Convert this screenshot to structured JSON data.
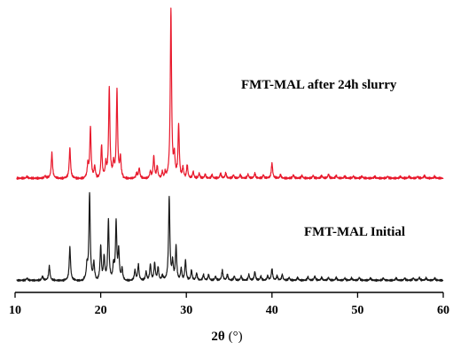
{
  "chart_data": {
    "type": "line",
    "xlabel_main": "2θ",
    "xlabel_unit": "(°)",
    "xlim": [
      10,
      60
    ],
    "xticks": [
      10,
      20,
      30,
      40,
      50,
      60
    ],
    "grid": false,
    "legend": "none",
    "peak_width_deg": 0.09,
    "series": [
      {
        "name": "FMT-MAL after 24h slurry",
        "color": "#e8192c",
        "baseline": 0.5,
        "peaks": [
          [
            11.4,
            0.5
          ],
          [
            13.5,
            0.8
          ],
          [
            14.3,
            7.5
          ],
          [
            16.4,
            9.0
          ],
          [
            18.5,
            4.0
          ],
          [
            18.8,
            15.0
          ],
          [
            19.3,
            3.5
          ],
          [
            20.1,
            10.0
          ],
          [
            20.6,
            4.0
          ],
          [
            21.0,
            27.0
          ],
          [
            21.5,
            4.0
          ],
          [
            21.9,
            26.0
          ],
          [
            22.3,
            6.0
          ],
          [
            24.2,
            1.5
          ],
          [
            24.5,
            3.0
          ],
          [
            25.8,
            2.0
          ],
          [
            26.2,
            6.5
          ],
          [
            26.6,
            3.5
          ],
          [
            27.2,
            2.0
          ],
          [
            27.5,
            1.5
          ],
          [
            28.2,
            50.0
          ],
          [
            28.6,
            6.0
          ],
          [
            29.1,
            16.0
          ],
          [
            29.6,
            3.0
          ],
          [
            30.1,
            4.0
          ],
          [
            30.8,
            2.0
          ],
          [
            31.5,
            1.5
          ],
          [
            32.2,
            1.2
          ],
          [
            33.0,
            1.0
          ],
          [
            34.0,
            1.5
          ],
          [
            34.6,
            1.5
          ],
          [
            35.5,
            1.0
          ],
          [
            36.3,
            1.0
          ],
          [
            37.2,
            1.2
          ],
          [
            38.0,
            1.5
          ],
          [
            39.0,
            1.0
          ],
          [
            40.0,
            4.5
          ],
          [
            41.0,
            1.0
          ],
          [
            42.5,
            1.0
          ],
          [
            43.5,
            0.8
          ],
          [
            44.8,
            0.8
          ],
          [
            45.8,
            0.8
          ],
          [
            46.6,
            1.2
          ],
          [
            47.5,
            0.8
          ],
          [
            48.5,
            0.6
          ],
          [
            49.5,
            0.6
          ],
          [
            50.5,
            0.6
          ],
          [
            52.0,
            0.5
          ],
          [
            53.5,
            0.5
          ],
          [
            55.0,
            0.5
          ],
          [
            56.0,
            0.5
          ],
          [
            57.0,
            0.5
          ],
          [
            57.8,
            0.8
          ],
          [
            59.0,
            0.5
          ]
        ]
      },
      {
        "name": "FMT-MAL Initial",
        "color": "#1a1a1a",
        "baseline": 0.5,
        "peaks": [
          [
            11.4,
            0.8
          ],
          [
            13.2,
            1.5
          ],
          [
            14.0,
            5.0
          ],
          [
            16.4,
            11.5
          ],
          [
            18.4,
            5.0
          ],
          [
            18.7,
            30.0
          ],
          [
            19.2,
            6.0
          ],
          [
            20.0,
            12.0
          ],
          [
            20.4,
            8.0
          ],
          [
            20.9,
            21.0
          ],
          [
            21.5,
            5.0
          ],
          [
            21.8,
            20.0
          ],
          [
            22.1,
            10.0
          ],
          [
            22.5,
            4.0
          ],
          [
            24.0,
            3.5
          ],
          [
            24.4,
            5.5
          ],
          [
            25.3,
            3.0
          ],
          [
            25.8,
            5.5
          ],
          [
            26.3,
            6.0
          ],
          [
            26.7,
            4.5
          ],
          [
            27.2,
            2.0
          ],
          [
            28.0,
            29.0
          ],
          [
            28.4,
            6.0
          ],
          [
            28.8,
            12.0
          ],
          [
            29.4,
            4.0
          ],
          [
            29.9,
            7.0
          ],
          [
            30.6,
            3.5
          ],
          [
            31.2,
            2.5
          ],
          [
            32.0,
            2.0
          ],
          [
            32.6,
            2.0
          ],
          [
            33.4,
            1.5
          ],
          [
            34.2,
            3.5
          ],
          [
            34.8,
            2.0
          ],
          [
            35.6,
            1.5
          ],
          [
            36.4,
            1.5
          ],
          [
            37.3,
            2.0
          ],
          [
            38.0,
            3.0
          ],
          [
            38.7,
            1.5
          ],
          [
            39.5,
            1.5
          ],
          [
            40.0,
            4.0
          ],
          [
            40.6,
            1.5
          ],
          [
            41.2,
            2.0
          ],
          [
            42.0,
            1.0
          ],
          [
            43.0,
            1.0
          ],
          [
            44.2,
            1.2
          ],
          [
            45.0,
            1.5
          ],
          [
            45.8,
            1.0
          ],
          [
            46.6,
            1.0
          ],
          [
            47.5,
            1.0
          ],
          [
            48.5,
            0.8
          ],
          [
            49.3,
            0.8
          ],
          [
            50.2,
            1.0
          ],
          [
            51.5,
            0.8
          ],
          [
            53.0,
            0.8
          ],
          [
            54.5,
            0.8
          ],
          [
            55.5,
            0.8
          ],
          [
            56.5,
            0.8
          ],
          [
            57.2,
            1.0
          ],
          [
            58.0,
            0.8
          ],
          [
            59.0,
            0.8
          ]
        ]
      }
    ]
  }
}
